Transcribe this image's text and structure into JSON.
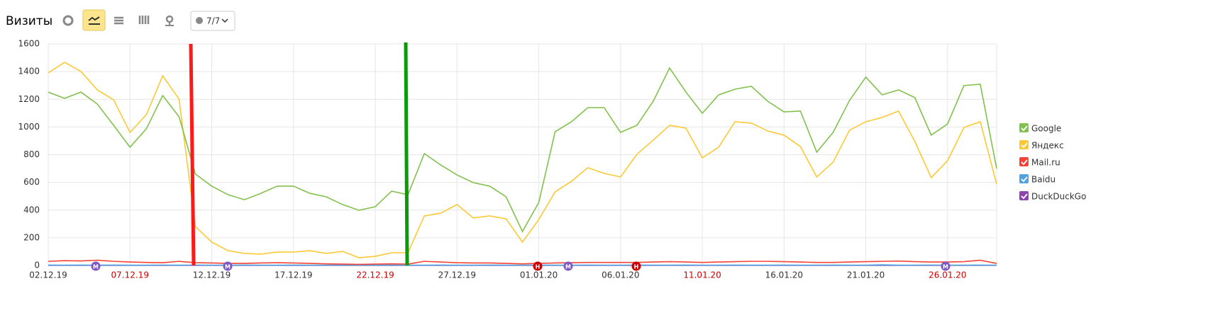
{
  "header": {
    "title": "Визиты",
    "segment_button": "7/7"
  },
  "chart_data": {
    "type": "line",
    "categories": [
      "02.12.19",
      null,
      null,
      null,
      null,
      "07.12.19",
      null,
      null,
      null,
      null,
      "12.12.19",
      null,
      null,
      null,
      null,
      "17.12.19",
      null,
      null,
      null,
      null,
      "22.12.19",
      null,
      null,
      null,
      null,
      "27.12.19",
      null,
      null,
      null,
      null,
      "01.01.20",
      null,
      null,
      null,
      null,
      "06.01.20",
      null,
      null,
      null,
      null,
      "11.01.20",
      null,
      null,
      null,
      null,
      "16.01.20",
      null,
      null,
      null,
      null,
      "21.01.20",
      null,
      null,
      null,
      null,
      "26.01.20",
      null,
      null,
      null
    ],
    "category_colors": [
      "#333333",
      null,
      null,
      null,
      null,
      "#cc0000",
      null,
      null,
      null,
      null,
      "#333333",
      null,
      null,
      null,
      null,
      "#333333",
      null,
      null,
      null,
      null,
      "#cc0000",
      null,
      null,
      null,
      null,
      "#333333",
      null,
      null,
      null,
      null,
      "#333333",
      null,
      null,
      null,
      null,
      "#333333",
      null,
      null,
      null,
      null,
      "#cc0000",
      null,
      null,
      null,
      null,
      "#333333",
      null,
      null,
      null,
      null,
      "#333333",
      null,
      null,
      null,
      null,
      "#cc0000",
      null,
      null,
      null
    ],
    "ylim": [
      0,
      1600
    ],
    "yticks": [
      0,
      200,
      400,
      600,
      800,
      1000,
      1200,
      1400,
      1600
    ],
    "grid": true,
    "series": [
      {
        "name": "Google",
        "color": "#82c14d",
        "values": [
          1252,
          1207,
          1252,
          1166,
          1012,
          854,
          987,
          1227,
          1074,
          660,
          573,
          511,
          475,
          521,
          573,
          573,
          521,
          496,
          440,
          399,
          424,
          537,
          511,
          808,
          726,
          654,
          598,
          573,
          496,
          245,
          455,
          966,
          1038,
          1140,
          1140,
          961,
          1012,
          1186,
          1426,
          1252,
          1099,
          1232,
          1273,
          1294,
          1186,
          1109,
          1115,
          818,
          961,
          1191,
          1360,
          1232,
          1268,
          1212,
          941,
          1022,
          1299,
          1309,
          700
        ]
      },
      {
        "name": "Яндекс",
        "color": "#fcc934",
        "values": [
          1391,
          1467,
          1401,
          1268,
          1196,
          961,
          1089,
          1370,
          1201,
          281,
          169,
          107,
          87,
          82,
          97,
          97,
          107,
          87,
          102,
          56,
          66,
          92,
          92,
          358,
          378,
          440,
          343,
          358,
          337,
          169,
          332,
          532,
          608,
          706,
          665,
          639,
          803,
          905,
          1012,
          992,
          777,
          854,
          1038,
          1028,
          971,
          941,
          859,
          639,
          746,
          976,
          1038,
          1069,
          1115,
          895,
          634,
          757,
          997,
          1038,
          588
        ]
      },
      {
        "name": "Mail.ru",
        "color": "#f44336",
        "values": [
          30,
          35,
          33,
          38,
          30,
          25,
          22,
          20,
          30,
          20,
          18,
          15,
          15,
          18,
          20,
          18,
          15,
          12,
          10,
          8,
          10,
          12,
          10,
          30,
          25,
          20,
          18,
          18,
          15,
          12,
          15,
          18,
          20,
          22,
          22,
          22,
          22,
          25,
          28,
          25,
          22,
          25,
          28,
          30,
          30,
          28,
          25,
          22,
          22,
          25,
          28,
          30,
          32,
          28,
          25,
          25,
          28,
          38,
          15
        ]
      },
      {
        "name": "Baidu",
        "color": "#4fa3e0",
        "values": [
          3,
          2,
          3,
          2,
          3,
          2,
          2,
          3,
          2,
          3,
          2,
          2,
          3,
          2,
          2,
          3,
          2,
          2,
          3,
          2,
          2,
          3,
          2,
          2,
          3,
          2,
          2,
          3,
          2,
          2,
          3,
          2,
          2,
          3,
          2,
          2,
          3,
          2,
          2,
          3,
          2,
          2,
          3,
          2,
          2,
          3,
          2,
          2,
          3,
          2,
          2,
          5,
          2,
          2,
          3,
          2,
          2,
          3,
          2
        ]
      },
      {
        "name": "DuckDuckGo",
        "color": "#8e44ad",
        "values": [
          1,
          1,
          1,
          1,
          1,
          1,
          1,
          1,
          1,
          1,
          1,
          1,
          1,
          1,
          1,
          1,
          1,
          1,
          1,
          1,
          1,
          1,
          1,
          1,
          1,
          1,
          1,
          1,
          1,
          1,
          1,
          1,
          1,
          1,
          1,
          1,
          1,
          1,
          1,
          1,
          1,
          1,
          1,
          1,
          1,
          1,
          1,
          1,
          1,
          1,
          1,
          1,
          1,
          1,
          1,
          1,
          1,
          1,
          1
        ]
      }
    ],
    "annotations": [
      "М",
      "М",
      "Н",
      "М",
      "Н",
      "М"
    ]
  }
}
